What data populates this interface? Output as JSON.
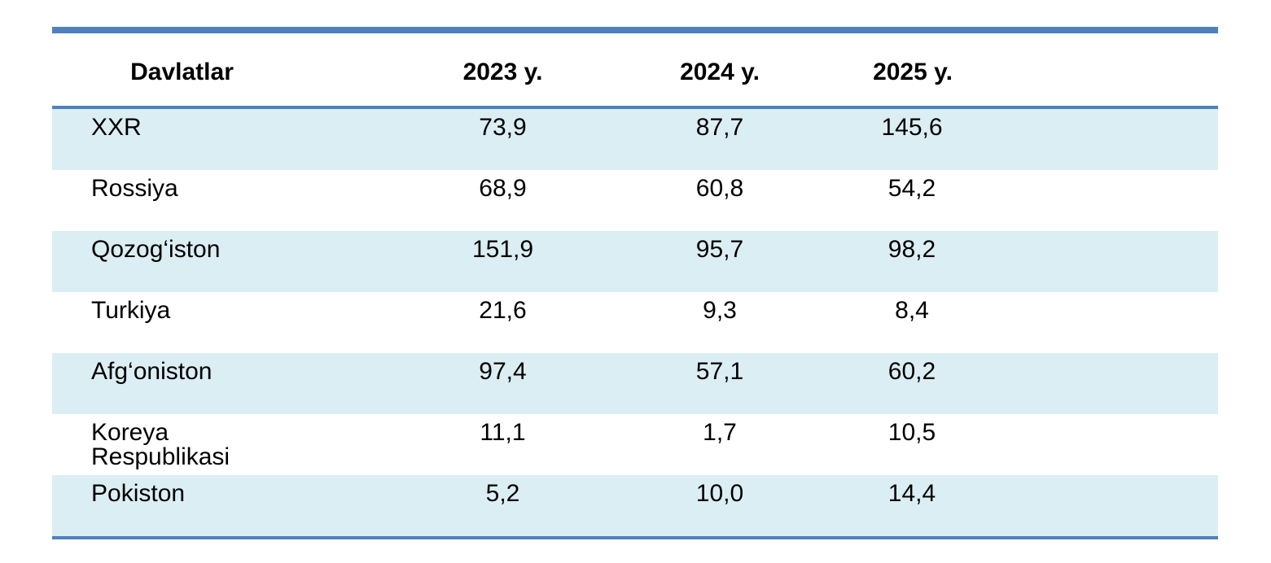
{
  "table": {
    "headers": [
      "Davlatlar",
      "2023 y.",
      "2024 y.",
      "2025 y."
    ],
    "rows": [
      {
        "country": "XXR",
        "values": [
          "73,9",
          "87,7",
          "145,6"
        ]
      },
      {
        "country": "Rossiya",
        "values": [
          "68,9",
          "60,8",
          "54,2"
        ]
      },
      {
        "country": "Qozog‘iston",
        "values": [
          "151,9",
          "95,7",
          "98,2"
        ]
      },
      {
        "country": "Turkiya",
        "values": [
          "21,6",
          "9,3",
          "8,4"
        ]
      },
      {
        "country": "Afg‘oniston",
        "values": [
          "97,4",
          "57,1",
          "60,2"
        ]
      },
      {
        "country": "Koreya Respublikasi",
        "values": [
          "11,1",
          "1,7",
          "10,5"
        ]
      },
      {
        "country": "Pokiston",
        "values": [
          "5,2",
          "10,0",
          "14,4"
        ]
      }
    ]
  },
  "colors": {
    "rule": "#4f81bd",
    "band": "#dbeef3"
  }
}
